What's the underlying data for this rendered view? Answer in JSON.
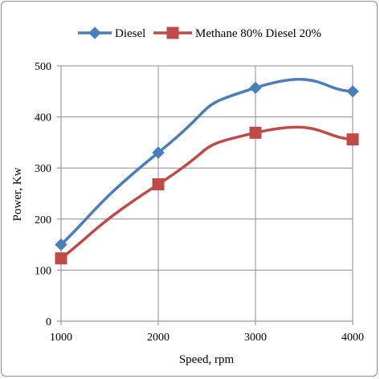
{
  "chart_data": {
    "type": "line",
    "title": "",
    "xlabel": "Speed, rpm",
    "ylabel": "Power, Kw",
    "x": [
      1000,
      2000,
      3000,
      4000
    ],
    "xlim": [
      1000,
      4000
    ],
    "ylim": [
      0,
      500
    ],
    "xticks": [
      "1000",
      "2000",
      "3000",
      "4000"
    ],
    "yticks": [
      "0",
      "100",
      "200",
      "300",
      "400",
      "500"
    ],
    "grid": "vertical and horizontal major gridlines",
    "legend_position": "top",
    "smoothed": true,
    "series": [
      {
        "name": "Diesel",
        "values": [
          150,
          330,
          457,
          450
        ],
        "color": "#4a7ebb",
        "marker": "diamond"
      },
      {
        "name": "Methane 80% Diesel 20%",
        "values": [
          123,
          268,
          369,
          356
        ],
        "color": "#be4b48",
        "marker": "square"
      }
    ]
  }
}
